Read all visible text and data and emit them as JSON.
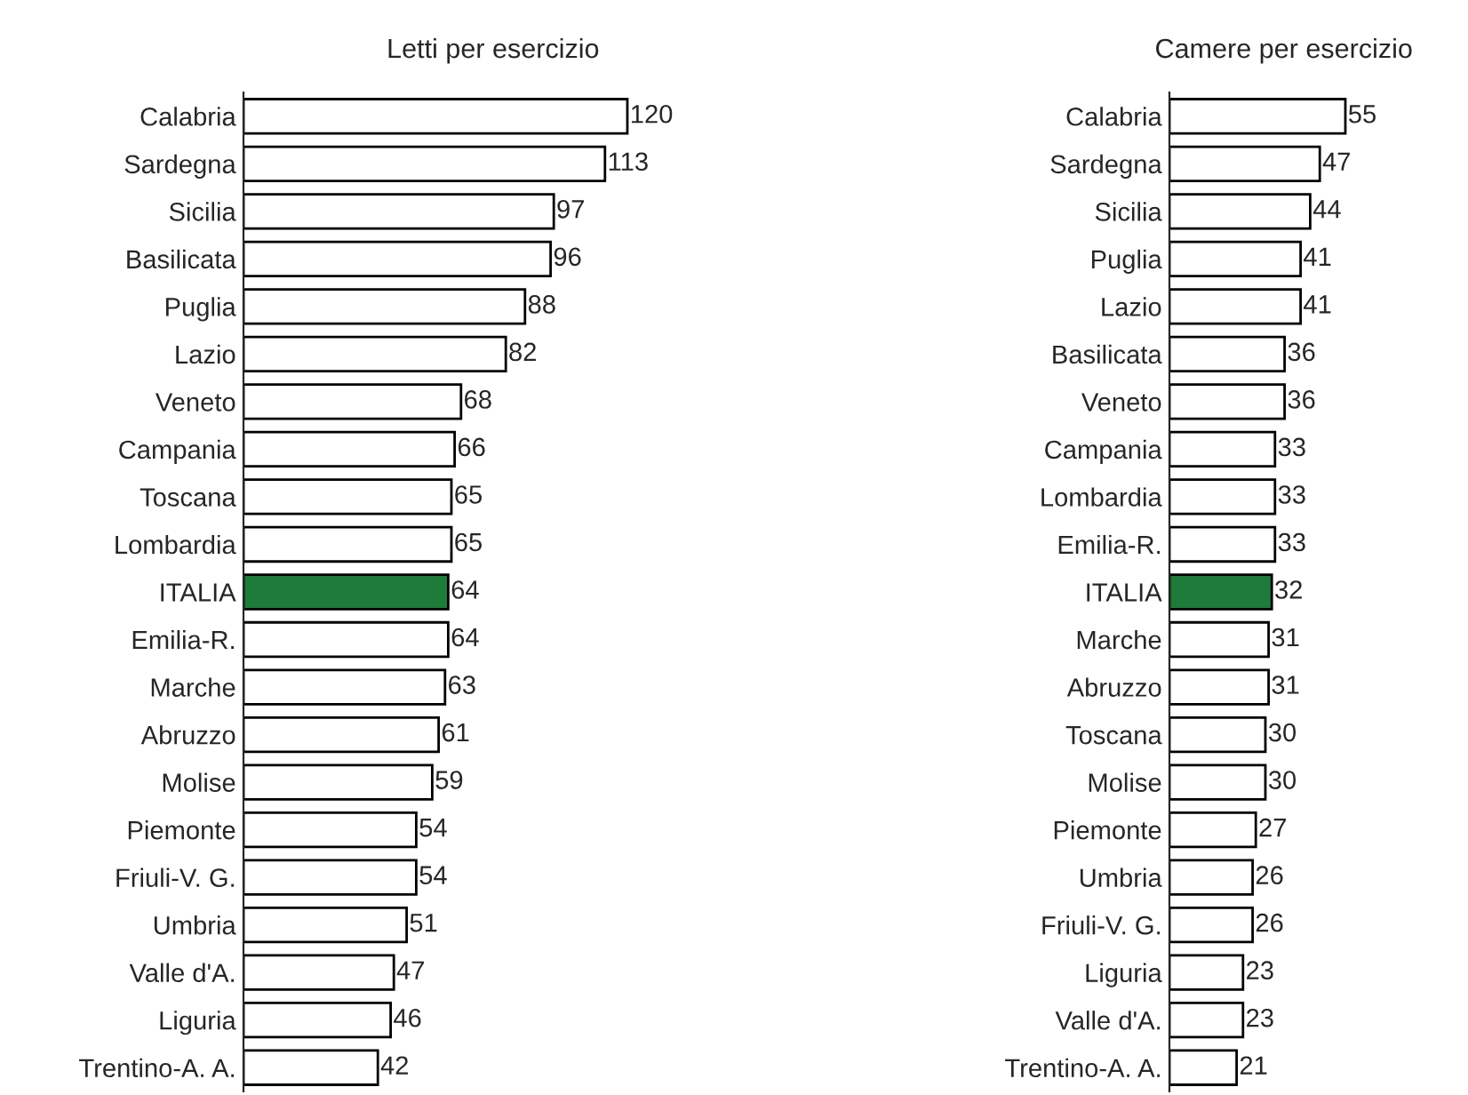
{
  "chart_data": [
    {
      "type": "bar",
      "orientation": "horizontal",
      "title": "Letti per esercizio",
      "data_labels": true,
      "categories": [
        "Calabria",
        "Sardegna",
        "Sicilia",
        "Basilicata",
        "Puglia",
        "Lazio",
        "Veneto",
        "Campania",
        "Toscana",
        "Lombardia",
        "ITALIA",
        "Emilia-R.",
        "Marche",
        "Abruzzo",
        "Molise",
        "Piemonte",
        "Friuli-V. G.",
        "Umbria",
        "Valle d'A.",
        "Liguria",
        "Trentino-A. A."
      ],
      "values": [
        120,
        113,
        97,
        96,
        88,
        82,
        68,
        66,
        65,
        65,
        64,
        64,
        63,
        61,
        59,
        54,
        54,
        51,
        47,
        46,
        42
      ],
      "colors": [
        "#ffffff",
        "#ffffff",
        "#ffffff",
        "#ffffff",
        "#ffffff",
        "#ffffff",
        "#ffffff",
        "#ffffff",
        "#ffffff",
        "#ffffff",
        "#1e7b3a",
        "#ffffff",
        "#ffffff",
        "#ffffff",
        "#ffffff",
        "#ffffff",
        "#ffffff",
        "#ffffff",
        "#ffffff",
        "#ffffff",
        "#ffffff"
      ]
    },
    {
      "type": "bar",
      "orientation": "horizontal",
      "title": "Camere per esercizio",
      "data_labels": true,
      "categories": [
        "Calabria",
        "Sardegna",
        "Sicilia",
        "Puglia",
        "Lazio",
        "Basilicata",
        "Veneto",
        "Campania",
        "Lombardia",
        "Emilia-R.",
        "ITALIA",
        "Marche",
        "Abruzzo",
        "Toscana",
        "Molise",
        "Piemonte",
        "Umbria",
        "Friuli-V. G.",
        "Liguria",
        "Valle d'A.",
        "Trentino-A. A."
      ],
      "values": [
        55,
        47,
        44,
        41,
        41,
        36,
        36,
        33,
        33,
        33,
        32,
        31,
        31,
        30,
        30,
        27,
        26,
        26,
        23,
        23,
        21
      ],
      "colors": [
        "#ffffff",
        "#ffffff",
        "#ffffff",
        "#ffffff",
        "#ffffff",
        "#ffffff",
        "#ffffff",
        "#ffffff",
        "#ffffff",
        "#ffffff",
        "#1e7b3a",
        "#ffffff",
        "#ffffff",
        "#ffffff",
        "#ffffff",
        "#ffffff",
        "#ffffff",
        "#ffffff",
        "#ffffff",
        "#ffffff",
        "#ffffff"
      ]
    }
  ]
}
